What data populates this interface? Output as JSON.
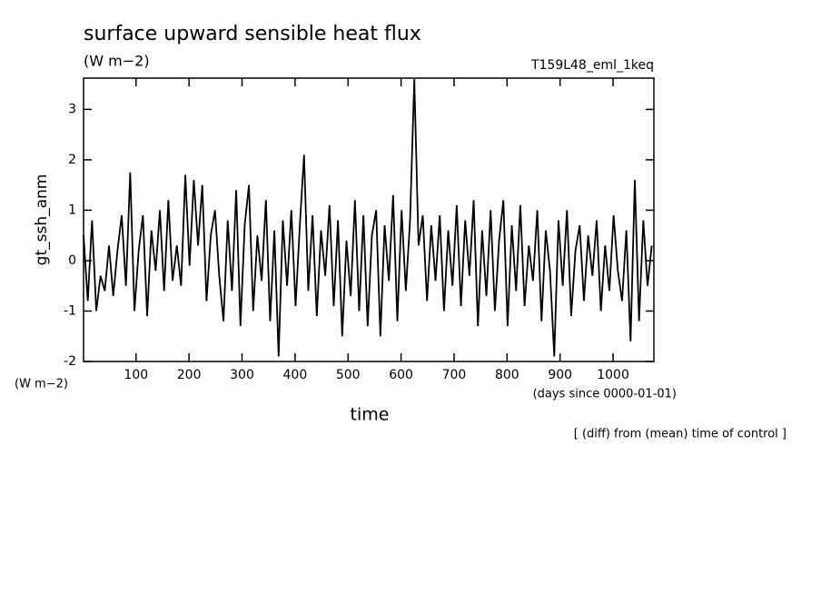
{
  "chart_data": {
    "type": "line",
    "title": "surface upward sensible heat flux",
    "subtitle": "(W m−2)",
    "annotation": "T159L48_eml_1keq",
    "ylabel": "gt_ssh_anm",
    "yunit": "(W m−2)",
    "xunit": "(days since 0000-01-01)",
    "xlabel": "time",
    "footnote": "[ (diff) from (mean) time of control ]",
    "xlim": [
      1,
      1077
    ],
    "ylim": [
      -2,
      3.62
    ],
    "xticks": [
      100,
      200,
      300,
      400,
      500,
      600,
      700,
      800,
      900,
      1000
    ],
    "yticks": [
      -2,
      -1,
      0,
      1,
      2,
      3
    ],
    "series": [
      {
        "color": "#000000",
        "x": [
          1,
          9,
          17,
          25,
          33,
          41,
          49,
          57,
          65,
          73,
          81,
          89,
          97,
          105,
          113,
          121,
          129,
          137,
          145,
          153,
          161,
          169,
          177,
          185,
          193,
          201,
          209,
          217,
          225,
          233,
          241,
          249,
          257,
          265,
          273,
          281,
          289,
          297,
          305,
          313,
          321,
          329,
          337,
          345,
          353,
          361,
          369,
          377,
          385,
          393,
          401,
          409,
          417,
          425,
          433,
          441,
          449,
          457,
          465,
          473,
          481,
          489,
          497,
          505,
          513,
          521,
          529,
          537,
          545,
          553,
          561,
          569,
          577,
          585,
          593,
          601,
          609,
          617,
          625,
          633,
          641,
          649,
          657,
          665,
          673,
          681,
          689,
          697,
          705,
          713,
          721,
          729,
          737,
          745,
          753,
          761,
          769,
          777,
          785,
          793,
          801,
          809,
          817,
          825,
          833,
          841,
          849,
          857,
          865,
          873,
          881,
          889,
          897,
          905,
          913,
          921,
          929,
          937,
          945,
          953,
          961,
          969,
          977,
          985,
          993,
          1001,
          1009,
          1017,
          1025,
          1033,
          1041,
          1049,
          1057,
          1065,
          1073
        ],
        "values": [
          0.5,
          -0.8,
          0.8,
          -1.0,
          -0.3,
          -0.6,
          0.3,
          -0.7,
          0.2,
          0.9,
          -0.5,
          1.75,
          -1.0,
          0.2,
          0.9,
          -1.1,
          0.6,
          -0.2,
          1.0,
          -0.6,
          1.2,
          -0.4,
          0.3,
          -0.5,
          1.7,
          -0.1,
          1.6,
          0.3,
          1.5,
          -0.8,
          0.5,
          1.0,
          -0.3,
          -1.2,
          0.8,
          -0.6,
          1.4,
          -1.3,
          0.7,
          1.5,
          -1.0,
          0.5,
          -0.4,
          1.2,
          -1.2,
          0.6,
          -1.9,
          0.8,
          -0.5,
          1.0,
          -0.9,
          0.7,
          2.1,
          -0.6,
          0.9,
          -1.1,
          0.6,
          -0.3,
          1.1,
          -0.9,
          0.8,
          -1.5,
          0.4,
          -0.7,
          1.2,
          -1.0,
          0.9,
          -1.3,
          0.5,
          1.0,
          -1.5,
          0.7,
          -0.4,
          1.3,
          -1.2,
          1.0,
          -0.6,
          0.8,
          3.6,
          0.3,
          0.9,
          -0.8,
          0.7,
          -0.4,
          0.9,
          -1.0,
          0.6,
          -0.5,
          1.1,
          -0.9,
          0.8,
          -0.3,
          1.2,
          -1.3,
          0.6,
          -0.7,
          1.0,
          -1.0,
          0.4,
          1.2,
          -1.3,
          0.7,
          -0.6,
          1.1,
          -0.9,
          0.3,
          -0.4,
          1.0,
          -1.2,
          0.6,
          -0.2,
          -1.9,
          0.8,
          -0.5,
          1.0,
          -1.1,
          0.2,
          0.7,
          -0.8,
          0.5,
          -0.3,
          0.8,
          -1.0,
          0.3,
          -0.6,
          0.9,
          -0.2,
          -0.8,
          0.6,
          -1.6,
          1.6,
          -1.2,
          0.8,
          -0.5,
          0.3
        ]
      }
    ]
  }
}
